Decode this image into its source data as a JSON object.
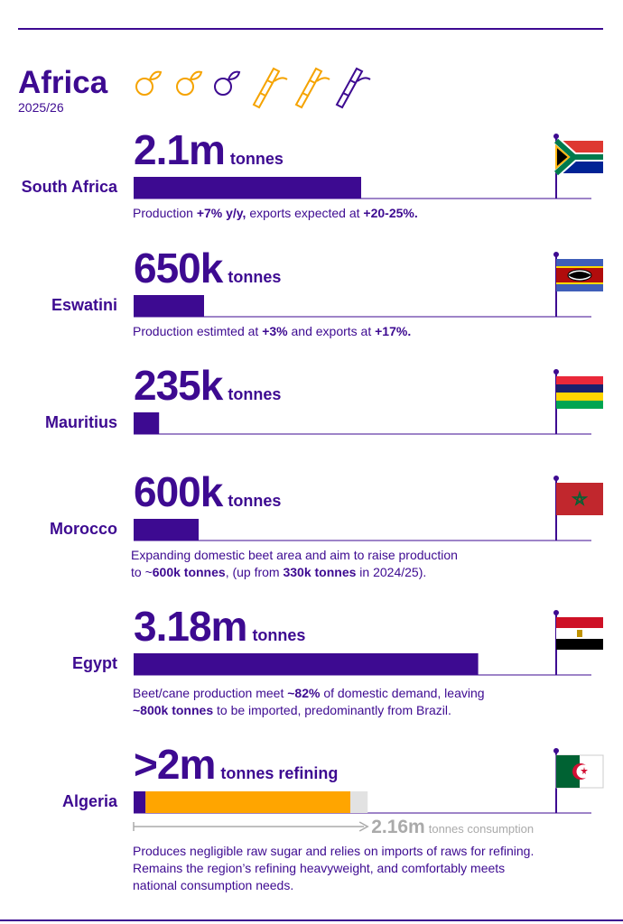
{
  "header": {
    "title": "Africa",
    "season": "2025/26"
  },
  "bar_color": "#3d0a91",
  "countries": [
    {
      "name": "South Africa",
      "amount": {
        "value": 2100000,
        "label": "2.1m"
      },
      "unit": "tonnes",
      "note": [
        [
          {
            "text": "Production ",
            "bold": false
          },
          {
            "text": "+7% y/y,",
            "bold": true
          },
          {
            "text": " exports expected at ",
            "bold": false
          },
          {
            "text": "+20-25%.",
            "bold": true
          }
        ]
      ]
    },
    {
      "name": "Eswatini",
      "amount": {
        "value": 650000,
        "label": "650k"
      },
      "unit": "tonnes",
      "note": [
        [
          {
            "text": "Production estimted at ",
            "bold": false
          },
          {
            "text": "+3%",
            "bold": true
          },
          {
            "text": " and exports at ",
            "bold": false
          },
          {
            "text": "+17%.",
            "bold": true
          }
        ]
      ]
    },
    {
      "name": "Mauritius",
      "amount": {
        "value": 235000,
        "label": "235k"
      },
      "unit": "tonnes",
      "note": []
    },
    {
      "name": "Morocco",
      "amount": {
        "value": 600000,
        "label": "600k"
      },
      "unit": "tonnes",
      "note": [
        [
          {
            "text": "Expanding domestic beet area and aim to raise production",
            "bold": false
          }
        ],
        [
          {
            "text": "to ~",
            "bold": false
          },
          {
            "text": "600k tonnes",
            "bold": true
          },
          {
            "text": ", (up from ",
            "bold": false
          },
          {
            "text": "330k tonnes",
            "bold": true
          },
          {
            "text": " in 2024/25).",
            "bold": false
          }
        ]
      ]
    },
    {
      "name": "Egypt",
      "amount": {
        "value": 3180000,
        "label": "3.18m"
      },
      "unit": "tonnes",
      "note": [
        [
          {
            "text": "Beet/cane production meet ",
            "bold": false
          },
          {
            "text": "~82%",
            "bold": true
          },
          {
            "text": " of domestic demand, leaving",
            "bold": false
          }
        ],
        [
          {
            "text": "~800k tonnes",
            "bold": true
          },
          {
            "text": " to be imported, predominantly from Brazil.",
            "bold": false
          }
        ]
      ]
    },
    {
      "name": "Algeria",
      "amount": {
        "value": 2000000,
        "label": ">2m"
      },
      "unit": "tonnes refining",
      "segments": [
        {
          "value": 110000,
          "color": "#3d0a91"
        },
        {
          "value": 1890000,
          "color": "#ffa500"
        }
      ],
      "consumption": {
        "value": 2160000,
        "label": "2.16m"
      },
      "consumption_unit": "tonnes consumption",
      "note": [
        [
          {
            "text": "Produces negligible raw sugar and relies on imports of raws for refining.",
            "bold": false
          }
        ],
        [
          {
            "text": "Remains the region’s refining heavyweight, and comfortably meets",
            "bold": false
          }
        ],
        [
          {
            "text": "national consumption needs.",
            "bold": false
          }
        ]
      ]
    }
  ]
}
